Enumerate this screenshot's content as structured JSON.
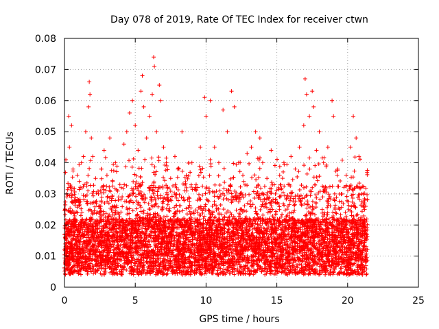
{
  "chart_data": {
    "type": "scatter",
    "title": "Day 078 of 2019, Rate Of TEC Index for receiver ctwn",
    "xlabel": "GPS time / hours",
    "ylabel": "ROTI / TECUs",
    "xlim": [
      0,
      25
    ],
    "ylim": [
      0,
      0.08
    ],
    "x_ticks": [
      "0",
      "5",
      "10",
      "15",
      "20",
      "25"
    ],
    "y_ticks": [
      "0",
      "0.01",
      "0.02",
      "0.03",
      "0.04",
      "0.05",
      "0.06",
      "0.07",
      "0.08"
    ],
    "grid": true,
    "legend": "none",
    "marker": "+",
    "color": "#ff0000",
    "series": [
      {
        "values": [
          [
            0.0,
            0.012
          ],
          [
            0.05,
            0.025
          ],
          [
            0.1,
            0.041
          ],
          [
            0.15,
            0.03
          ],
          [
            0.2,
            0.018
          ],
          [
            0.3,
            0.055
          ],
          [
            0.35,
            0.045
          ],
          [
            0.5,
            0.052
          ],
          [
            0.6,
            0.038
          ],
          [
            0.7,
            0.02
          ],
          [
            0.9,
            0.036
          ],
          [
            1.0,
            0.028
          ],
          [
            1.2,
            0.04
          ],
          [
            1.4,
            0.033
          ],
          [
            1.5,
            0.05
          ],
          [
            1.7,
            0.058
          ],
          [
            1.75,
            0.066
          ],
          [
            1.8,
            0.062
          ],
          [
            1.9,
            0.048
          ],
          [
            2.0,
            0.042
          ],
          [
            2.2,
            0.035
          ],
          [
            2.4,
            0.03
          ],
          [
            2.6,
            0.038
          ],
          [
            2.8,
            0.044
          ],
          [
            3.0,
            0.036
          ],
          [
            3.2,
            0.048
          ],
          [
            3.4,
            0.034
          ],
          [
            3.6,
            0.04
          ],
          [
            3.8,
            0.028
          ],
          [
            4.0,
            0.032
          ],
          [
            4.2,
            0.046
          ],
          [
            4.4,
            0.05
          ],
          [
            4.6,
            0.056
          ],
          [
            4.8,
            0.06
          ],
          [
            5.0,
            0.052
          ],
          [
            5.2,
            0.044
          ],
          [
            5.4,
            0.063
          ],
          [
            5.5,
            0.068
          ],
          [
            5.6,
            0.058
          ],
          [
            5.8,
            0.048
          ],
          [
            6.0,
            0.055
          ],
          [
            6.2,
            0.062
          ],
          [
            6.3,
            0.074
          ],
          [
            6.35,
            0.071
          ],
          [
            6.5,
            0.05
          ],
          [
            6.7,
            0.065
          ],
          [
            6.8,
            0.06
          ],
          [
            7.0,
            0.045
          ],
          [
            7.2,
            0.04
          ],
          [
            7.5,
            0.035
          ],
          [
            7.8,
            0.042
          ],
          [
            8.0,
            0.038
          ],
          [
            8.3,
            0.05
          ],
          [
            8.6,
            0.036
          ],
          [
            9.0,
            0.04
          ],
          [
            9.3,
            0.033
          ],
          [
            9.6,
            0.045
          ],
          [
            9.9,
            0.061
          ],
          [
            10.0,
            0.055
          ],
          [
            10.3,
            0.06
          ],
          [
            10.6,
            0.045
          ],
          [
            10.9,
            0.04
          ],
          [
            11.2,
            0.057
          ],
          [
            11.5,
            0.05
          ],
          [
            11.8,
            0.063
          ],
          [
            12.0,
            0.058
          ],
          [
            12.3,
            0.04
          ],
          [
            12.6,
            0.036
          ],
          [
            12.9,
            0.043
          ],
          [
            13.2,
            0.045
          ],
          [
            13.5,
            0.05
          ],
          [
            13.8,
            0.048
          ],
          [
            14.0,
            0.04
          ],
          [
            14.3,
            0.035
          ],
          [
            14.6,
            0.044
          ],
          [
            14.9,
            0.03
          ],
          [
            15.2,
            0.036
          ],
          [
            15.5,
            0.04
          ],
          [
            15.8,
            0.033
          ],
          [
            16.0,
            0.042
          ],
          [
            16.3,
            0.038
          ],
          [
            16.6,
            0.045
          ],
          [
            16.9,
            0.052
          ],
          [
            17.0,
            0.067
          ],
          [
            17.1,
            0.062
          ],
          [
            17.3,
            0.055
          ],
          [
            17.5,
            0.063
          ],
          [
            17.6,
            0.058
          ],
          [
            17.8,
            0.044
          ],
          [
            18.0,
            0.05
          ],
          [
            18.3,
            0.04
          ],
          [
            18.6,
            0.045
          ],
          [
            18.9,
            0.06
          ],
          [
            19.0,
            0.055
          ],
          [
            19.3,
            0.038
          ],
          [
            19.6,
            0.03
          ],
          [
            19.9,
            0.036
          ],
          [
            20.2,
            0.045
          ],
          [
            20.4,
            0.055
          ],
          [
            20.6,
            0.048
          ],
          [
            20.8,
            0.042
          ],
          [
            21.0,
            0.03
          ],
          [
            21.2,
            0.025
          ],
          [
            21.3,
            0.015
          ]
        ]
      }
    ]
  }
}
